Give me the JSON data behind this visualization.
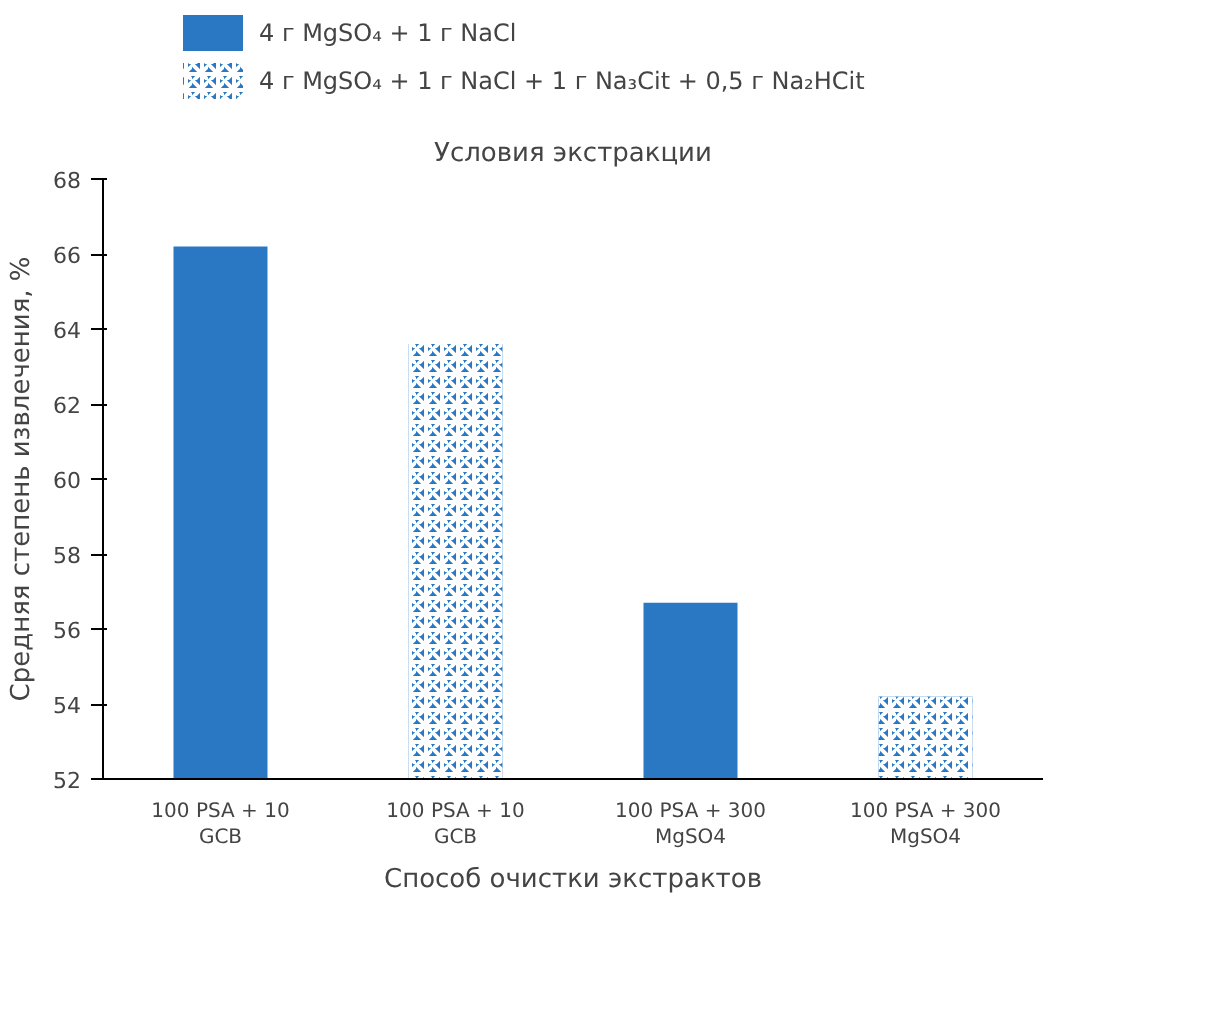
{
  "chart_data": {
    "type": "bar",
    "xlabel": "Способ очистки экстрактов",
    "ylabel": "Средняя степень извлечения, %",
    "legend_title": "Условия экстракции",
    "categories": [
      "100 PSA + 10 GCB",
      "100 PSA + 10 GCB",
      "100 PSA + 300 MgSO4",
      "100 PSA + 300 MgSO4"
    ],
    "series": [
      {
        "name": "4 г MgSO₄ + 1 г NaCl",
        "color": "#2a78c4",
        "values": [
          66.2,
          null,
          56.7,
          null
        ]
      },
      {
        "name": "4 г MgSO₄ + 1 г NaCl + 1 г Na₃Cit + 0,5 г Na₂HCit",
        "color": "#2a78c4",
        "values": [
          null,
          63.6,
          null,
          54.2
        ]
      }
    ],
    "ylim": [
      52,
      68
    ],
    "yticks": [
      52,
      54,
      56,
      58,
      60,
      62,
      64,
      66,
      68
    ],
    "grid": false,
    "legend": "top"
  }
}
